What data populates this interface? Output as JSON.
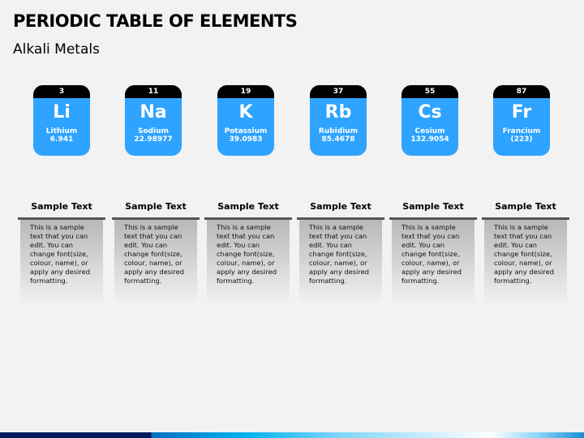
{
  "title": "PERIODIC TABLE OF ELEMENTS",
  "subtitle": "Alkali Metals",
  "colors": {
    "tile": "#2ea3ff",
    "tile_header": "#000000",
    "footer_dark": "#001a5c"
  },
  "elements": [
    {
      "number": "3",
      "symbol": "Li",
      "name": "Lithium",
      "mass": "6.941"
    },
    {
      "number": "11",
      "symbol": "Na",
      "name": "Sodium",
      "mass": "22.98977"
    },
    {
      "number": "19",
      "symbol": "K",
      "name": "Potassium",
      "mass": "39.0983"
    },
    {
      "number": "37",
      "symbol": "Rb",
      "name": "Rubidium",
      "mass": "85.4678"
    },
    {
      "number": "55",
      "symbol": "Cs",
      "name": "Cesium",
      "mass": "132.9054"
    },
    {
      "number": "87",
      "symbol": "Fr",
      "name": "Francium",
      "mass": "(223)"
    }
  ],
  "columns": [
    {
      "heading": "Sample Text",
      "body": "This is a sample text that you can edit. You can change font(size, colour, name), or apply any desired formatting."
    },
    {
      "heading": "Sample Text",
      "body": "This is a sample text that you can edit. You can change font(size, colour, name), or apply any desired formatting."
    },
    {
      "heading": "Sample Text",
      "body": "This is a sample text that you can edit. You can change font(size, colour, name), or apply any desired formatting."
    },
    {
      "heading": "Sample Text",
      "body": "This is a sample text that you can edit. You can change font(size, colour, name), or apply any desired formatting."
    },
    {
      "heading": "Sample Text",
      "body": "This is a sample text that you can edit. You can change font(size, colour, name), or apply any desired formatting."
    },
    {
      "heading": "Sample Text",
      "body": "This is a sample text that you can edit. You can change font(size, colour, name), or apply any desired formatting."
    }
  ]
}
